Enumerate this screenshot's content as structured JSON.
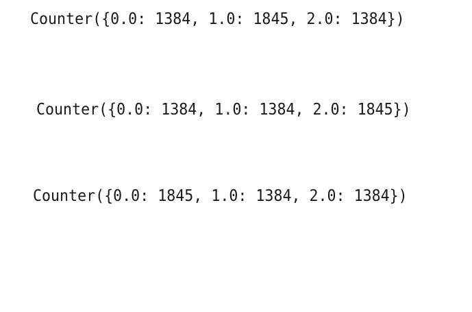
{
  "output": {
    "lines": [
      "Counter({0.0: 1384, 1.0: 1845, 2.0: 1384})",
      "Counter({0.0: 1384, 1.0: 1384, 2.0: 1845})",
      "Counter({0.0: 1845, 1.0: 1384, 2.0: 1384})"
    ]
  },
  "colors": {
    "background": "#ffffff",
    "text": "#1a1a1a"
  }
}
